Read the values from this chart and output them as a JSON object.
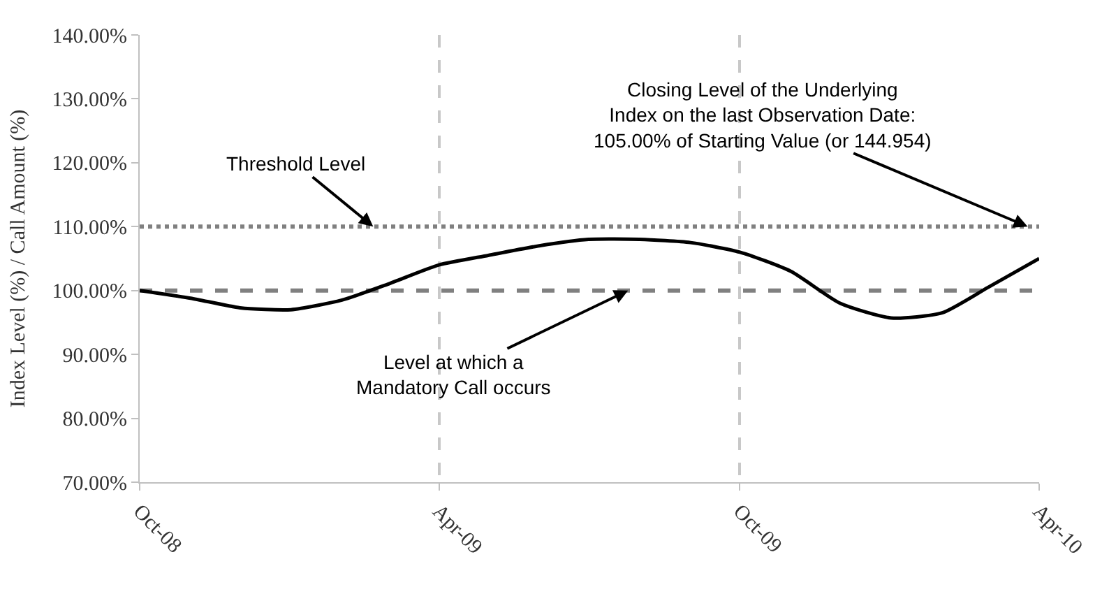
{
  "chart_data": {
    "type": "line",
    "ylabel": "Index Level (%) / Call Amount (%)",
    "x": [
      "2008-10",
      "2008-11",
      "2008-12",
      "2009-01",
      "2009-02",
      "2009-03",
      "2009-04",
      "2009-05",
      "2009-06",
      "2009-07",
      "2009-08",
      "2009-09",
      "2009-10",
      "2009-11",
      "2009-12",
      "2010-01",
      "2010-02",
      "2010-03",
      "2010-04"
    ],
    "series": [
      {
        "color": "#000000",
        "values": [
          100,
          98.8,
          97.3,
          97,
          98.5,
          101,
          104,
          105.5,
          107,
          108,
          108,
          107.5,
          106,
          103,
          98,
          95.7,
          96.5,
          100.5,
          105
        ]
      }
    ],
    "xlim": [
      "2008-10-01",
      "2010-04-01"
    ],
    "xticks": [
      {
        "value": "2008-10-01",
        "label": "Oct-08"
      },
      {
        "value": "2009-04-01",
        "label": "Apr-09"
      },
      {
        "value": "2009-10-01",
        "label": "Oct-09"
      },
      {
        "value": "2010-04-01",
        "label": "Apr-10"
      }
    ],
    "ylim": [
      70,
      140
    ],
    "yticks": [
      {
        "value": 70,
        "label": "70.00%"
      },
      {
        "value": 80,
        "label": "80.00%"
      },
      {
        "value": 90,
        "label": "90.00%"
      },
      {
        "value": 100,
        "label": "100.00%"
      },
      {
        "value": 110,
        "label": "110.00%"
      },
      {
        "value": 120,
        "label": "120.00%"
      },
      {
        "value": 130,
        "label": "130.00%"
      },
      {
        "value": 140,
        "label": "140.00%"
      }
    ],
    "grid": "x",
    "marker": "none",
    "line_style": "solid",
    "ref_lines": [
      {
        "axis": "y",
        "value": 110,
        "label": null,
        "color": "#808080",
        "line_style": "dotted"
      },
      {
        "axis": "y",
        "value": 100,
        "label": null,
        "color": "#808080",
        "line_style": "dashed"
      }
    ],
    "annotations": [
      {
        "text": "Threshold Level",
        "x": "2009-02-20",
        "y": 110
      },
      {
        "text": "Level at which a\nMandatory Call occurs",
        "x": "2009-07-25",
        "y": 100
      },
      {
        "text": "Closing Level of the Underlying\nIndex on the last Observation Date:\n105.00% of Starting Value (or 144.954)",
        "x": "2010-03-25",
        "y": 110
      }
    ]
  }
}
